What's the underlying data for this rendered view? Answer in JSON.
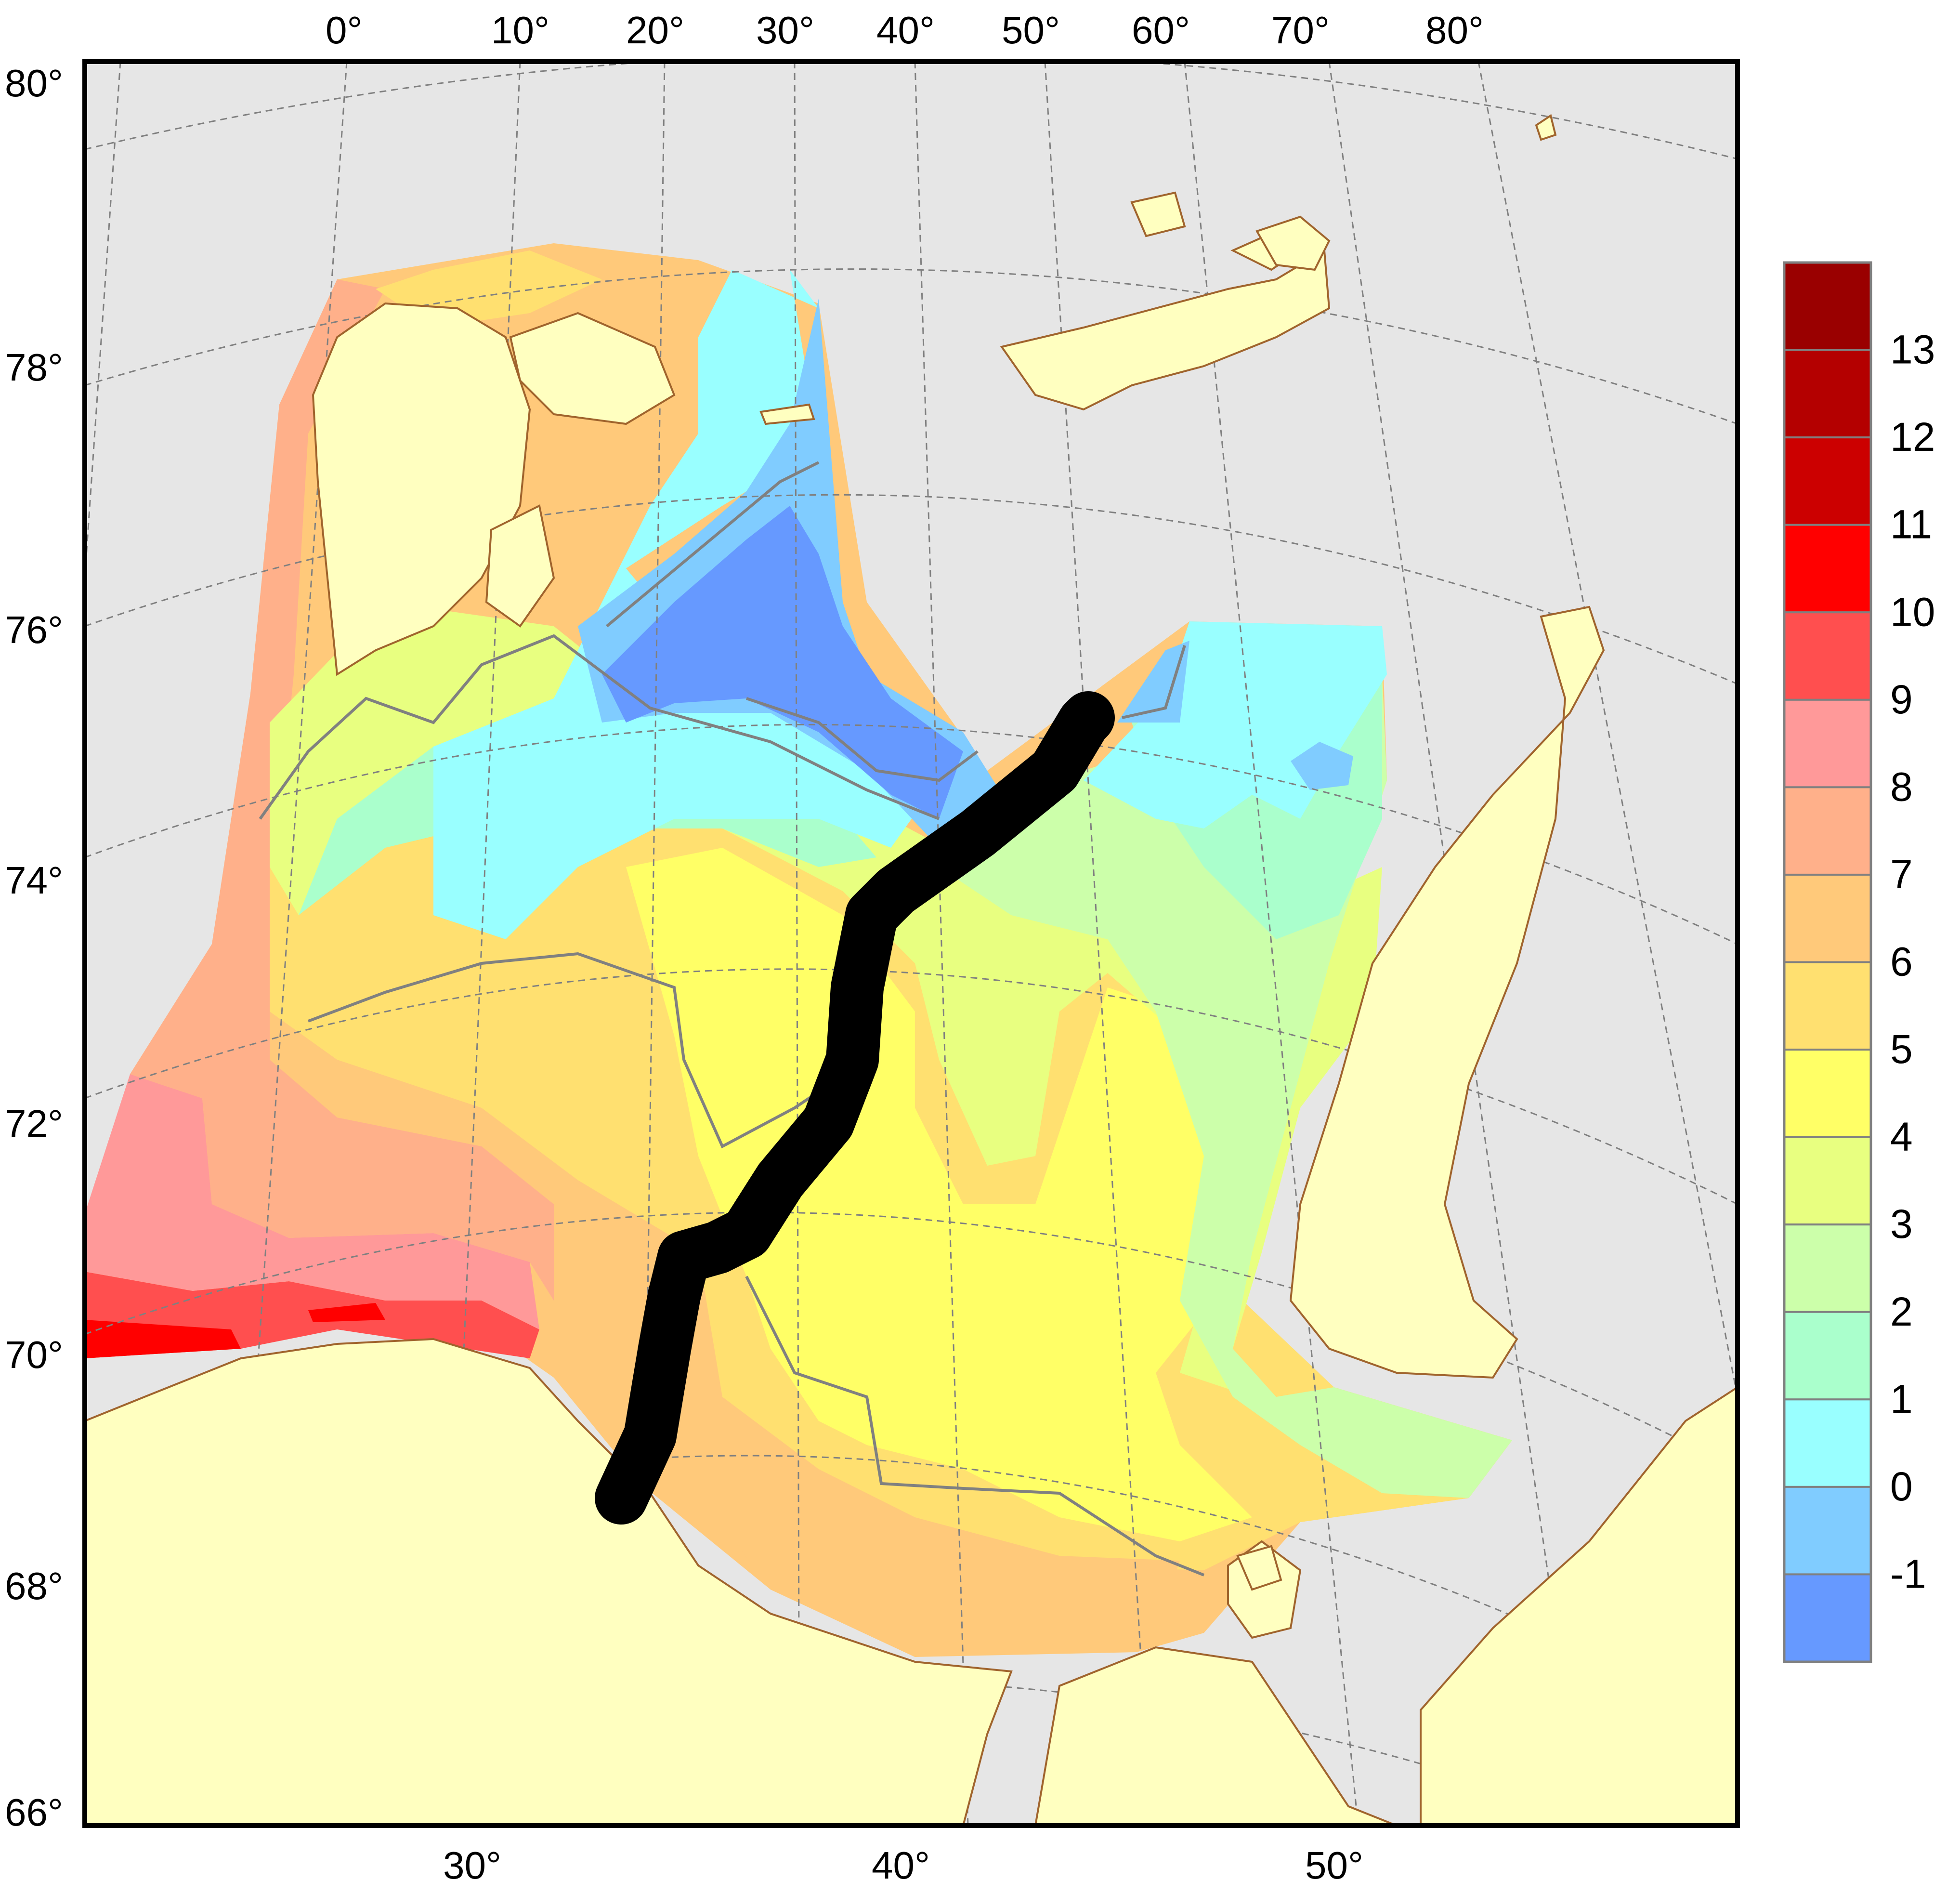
{
  "map": {
    "top_longitude_labels": [
      "0°",
      "10°",
      "20°",
      "30°",
      "40°",
      "50°",
      "60°",
      "70°",
      "80°"
    ],
    "left_latitude_labels": [
      "80°",
      "78°",
      "76°",
      "74°",
      "72°",
      "70°",
      "68°",
      "66°"
    ],
    "bottom_longitude_labels": [
      "30°",
      "40°",
      "50°"
    ],
    "colors": {
      "ocean_background": "#e6e6e6",
      "land": "#ffffc0",
      "coastline": "#a0642d",
      "contour_line": "#808080",
      "graticule": "#808080",
      "section_line": "#000000"
    }
  },
  "colorbar": {
    "labels": [
      "13",
      "12",
      "11",
      "10",
      "9",
      "8",
      "7",
      "6",
      "5",
      "4",
      "3",
      "2",
      "1",
      "0",
      "-1"
    ],
    "colors": [
      "#9a0000",
      "#b40000",
      "#cc0000",
      "#ff0000",
      "#ff4f4f",
      "#ff9999",
      "#ffb08a",
      "#ffc97a",
      "#ffe070",
      "#ffff66",
      "#e8ff80",
      "#ccffaa",
      "#aaffcc",
      "#99ffff",
      "#80ccff",
      "#6699ff"
    ]
  }
}
